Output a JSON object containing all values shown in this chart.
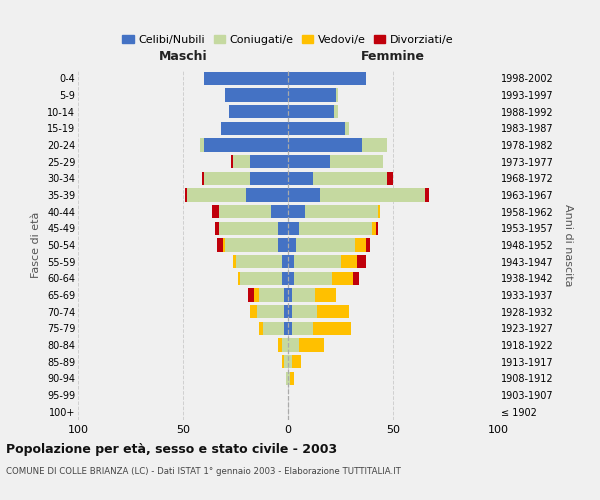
{
  "age_groups": [
    "100+",
    "95-99",
    "90-94",
    "85-89",
    "80-84",
    "75-79",
    "70-74",
    "65-69",
    "60-64",
    "55-59",
    "50-54",
    "45-49",
    "40-44",
    "35-39",
    "30-34",
    "25-29",
    "20-24",
    "15-19",
    "10-14",
    "5-9",
    "0-4"
  ],
  "birth_years": [
    "≤ 1902",
    "1903-1907",
    "1908-1912",
    "1913-1917",
    "1918-1922",
    "1923-1927",
    "1928-1932",
    "1933-1937",
    "1938-1942",
    "1943-1947",
    "1948-1952",
    "1953-1957",
    "1958-1962",
    "1963-1967",
    "1968-1972",
    "1973-1977",
    "1978-1982",
    "1983-1987",
    "1988-1992",
    "1993-1997",
    "1998-2002"
  ],
  "males": {
    "celibi": [
      0,
      0,
      0,
      0,
      0,
      2,
      2,
      2,
      3,
      3,
      5,
      5,
      8,
      20,
      18,
      18,
      40,
      32,
      28,
      30,
      40
    ],
    "coniugati": [
      0,
      0,
      1,
      2,
      3,
      10,
      13,
      12,
      20,
      22,
      25,
      28,
      25,
      28,
      22,
      8,
      2,
      0,
      0,
      0,
      0
    ],
    "vedovi": [
      0,
      0,
      0,
      1,
      2,
      2,
      3,
      2,
      1,
      1,
      1,
      0,
      0,
      0,
      0,
      0,
      0,
      0,
      0,
      0,
      0
    ],
    "divorziati": [
      0,
      0,
      0,
      0,
      0,
      0,
      0,
      3,
      0,
      0,
      3,
      2,
      3,
      1,
      1,
      1,
      0,
      0,
      0,
      0,
      0
    ]
  },
  "females": {
    "nubili": [
      0,
      0,
      0,
      0,
      0,
      2,
      2,
      2,
      3,
      3,
      4,
      5,
      8,
      15,
      12,
      20,
      35,
      27,
      22,
      23,
      37
    ],
    "coniugate": [
      0,
      0,
      1,
      2,
      5,
      10,
      12,
      11,
      18,
      22,
      28,
      35,
      35,
      50,
      35,
      25,
      12,
      2,
      2,
      1,
      0
    ],
    "vedove": [
      0,
      0,
      2,
      4,
      12,
      18,
      15,
      10,
      10,
      8,
      5,
      2,
      1,
      0,
      0,
      0,
      0,
      0,
      0,
      0,
      0
    ],
    "divorziate": [
      0,
      0,
      0,
      0,
      0,
      0,
      0,
      0,
      3,
      4,
      2,
      1,
      0,
      2,
      3,
      0,
      0,
      0,
      0,
      0,
      0
    ]
  },
  "color_celibi": "#4472c4",
  "color_coniugati": "#c5d9a0",
  "color_vedovi": "#ffc000",
  "color_divorziati": "#c0000b",
  "bg_color": "#f0f0f0",
  "grid_color": "#cccccc",
  "title": "Popolazione per età, sesso e stato civile - 2003",
  "subtitle": "COMUNE DI COLLE BRIANZA (LC) - Dati ISTAT 1° gennaio 2003 - Elaborazione TUTTITALIA.IT",
  "ylabel_left": "Fasce di età",
  "ylabel_right": "Anni di nascita",
  "xlabel_left": "Maschi",
  "xlabel_right": "Femmine",
  "xlim": 100,
  "legend_labels": [
    "Celibi/Nubili",
    "Coniugati/e",
    "Vedovi/e",
    "Divorziati/e"
  ]
}
